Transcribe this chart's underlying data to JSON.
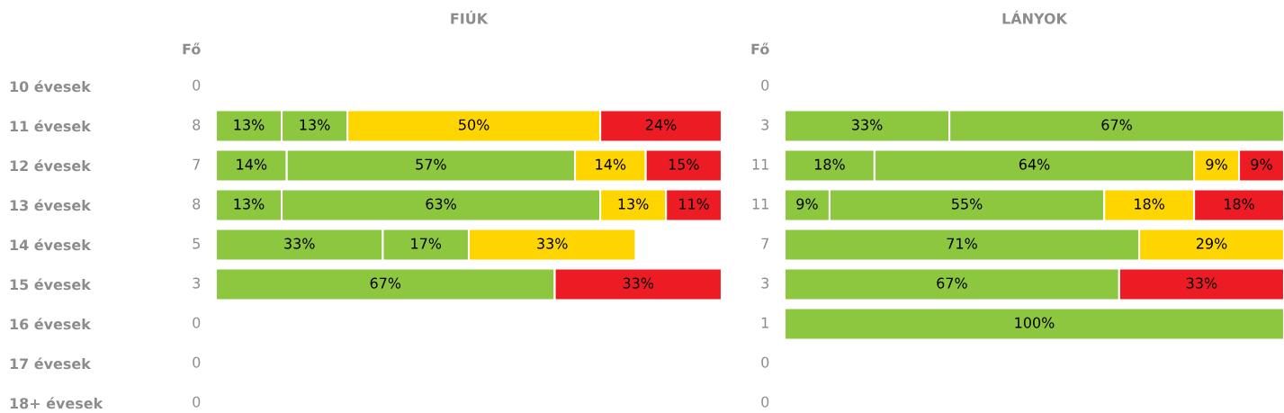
{
  "chart_data": [
    {
      "type": "bar",
      "orientation": "horizontal",
      "stacked": true,
      "title": "FIÚK",
      "ylabel": "Fő",
      "tick_labels": "y",
      "categories": [
        "10 évesek",
        "11 évesek",
        "12 évesek",
        "13 évesek",
        "14 évesek",
        "15 évesek",
        "16 évesek",
        "17 évesek",
        "18+ évesek"
      ],
      "series": [
        {
          "color": "#8dc63f",
          "values": [
            null,
            13,
            14,
            13,
            33,
            67,
            null,
            null,
            null
          ],
          "value_labels": [
            null,
            "13%",
            "14%",
            "13%",
            "33%",
            "67%",
            null,
            null,
            null
          ]
        },
        {
          "color": "#8dc63f",
          "values": [
            null,
            13,
            57,
            63,
            17,
            null,
            null,
            null,
            null
          ],
          "value_labels": [
            null,
            "13%",
            "57%",
            "63%",
            "17%",
            null,
            null,
            null,
            null
          ]
        },
        {
          "color": "#ffd500",
          "values": [
            null,
            50,
            14,
            13,
            33,
            null,
            null,
            null,
            null
          ],
          "value_labels": [
            null,
            "50%",
            "14%",
            "13%",
            "33%",
            null,
            null,
            null,
            null
          ]
        },
        {
          "color": "#ed1c24",
          "values": [
            null,
            24,
            15,
            11,
            null,
            33,
            null,
            null,
            null
          ],
          "value_labels": [
            null,
            "24%",
            "15%",
            "11%",
            null,
            "33%",
            null,
            null,
            null
          ]
        }
      ],
      "annotations": [
        "0",
        "8",
        "7",
        "8",
        "5",
        "3",
        "0",
        "0",
        "0"
      ]
    },
    {
      "type": "bar",
      "orientation": "horizontal",
      "stacked": true,
      "title": "LÁNYOK",
      "ylabel": "Fő",
      "tick_labels": false,
      "categories": [
        null,
        null,
        null,
        null,
        null,
        null,
        null,
        null,
        null
      ],
      "series": [
        {
          "color": "#8dc63f",
          "values": [
            null,
            33,
            18,
            9,
            71,
            67,
            100,
            null,
            null
          ],
          "value_labels": [
            null,
            "33%",
            "18%",
            "9%",
            "71%",
            "67%",
            "100%",
            null,
            null
          ]
        },
        {
          "color": "#8dc63f",
          "values": [
            null,
            67,
            64,
            55,
            null,
            null,
            null,
            null,
            null
          ],
          "value_labels": [
            null,
            "67%",
            "64%",
            "55%",
            null,
            null,
            null,
            null,
            null
          ]
        },
        {
          "color": "#ffd500",
          "values": [
            null,
            null,
            9,
            18,
            29,
            null,
            null,
            null,
            null
          ],
          "value_labels": [
            null,
            null,
            "9%",
            "18%",
            "29%",
            null,
            null,
            null,
            null
          ]
        },
        {
          "color": "#ed1c24",
          "values": [
            null,
            null,
            9,
            18,
            null,
            33,
            null,
            null,
            null
          ],
          "value_labels": [
            null,
            null,
            "9%",
            "18%",
            null,
            "33%",
            null,
            null,
            null
          ]
        }
      ],
      "annotations": [
        "0",
        "3",
        "11",
        "11",
        "7",
        "3",
        "1",
        "0",
        "0"
      ]
    }
  ]
}
